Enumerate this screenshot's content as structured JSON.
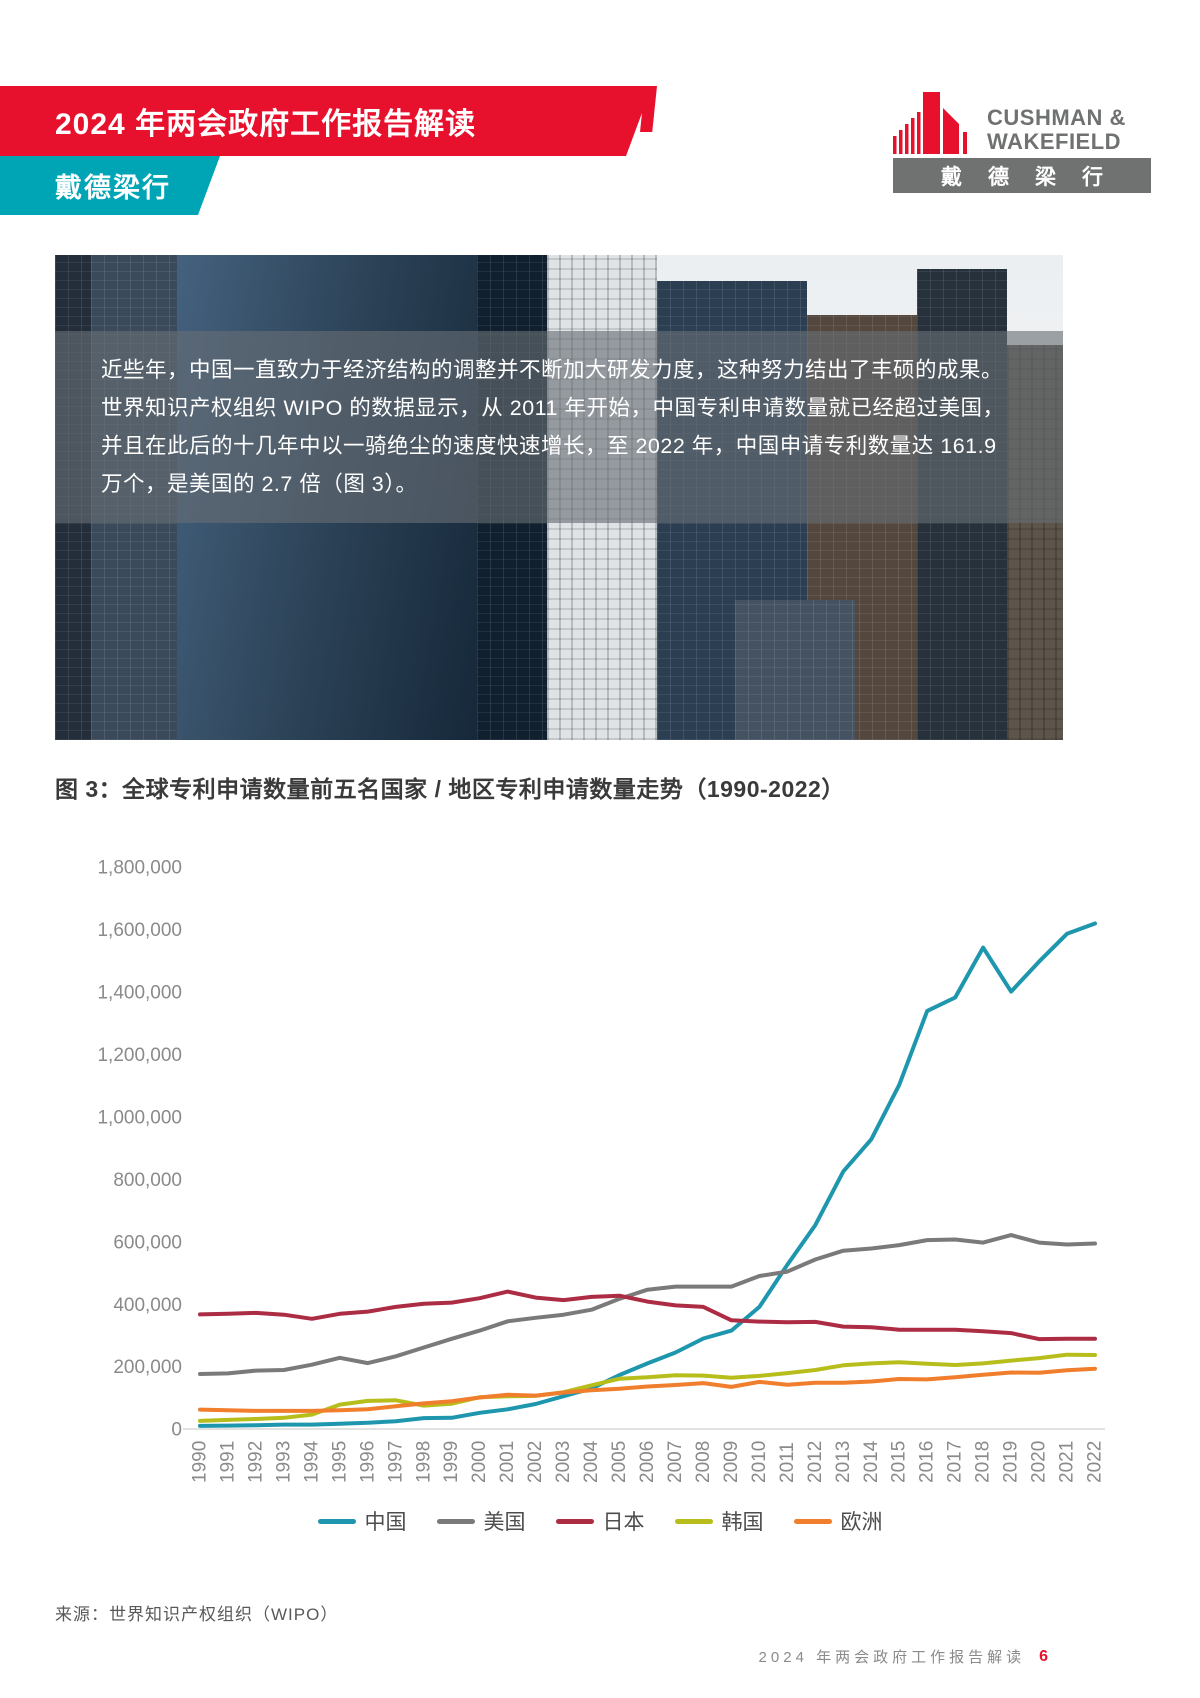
{
  "header": {
    "banner_title": "2024 年两会政府工作报告解读",
    "banner_subtitle": "戴德梁行",
    "logo": {
      "name_line1": "CUSHMAN &",
      "name_line2": "WAKEFIELD",
      "name_cn": "戴德梁行",
      "brand_red": "#E8112D",
      "brand_gray": "#6F7271"
    }
  },
  "hero": {
    "paragraph_lines": [
      "近些年，中国一直致力于经济结构的调整并不断加大研发力度，这种努力结出了丰硕的成果。",
      "世界知识产权组织 WIPO 的数据显示，从 2011 年开始，中国专利申请数量就已经超过美国，",
      "并且在此后的十几年中以一骑绝尘的速度快速增长，至 2022 年，中国申请专利数量达 161.9",
      "万个，是美国的 2.7 倍（图 3）。"
    ]
  },
  "figure": {
    "title": "图 3：全球专利申请数量前五名国家 / 地区专利申请数量走势（1990-2022）",
    "source": "来源：世界知识产权组织（WIPO）"
  },
  "chart_data": {
    "type": "line",
    "title": "全球专利申请数量前五名国家 / 地区专利申请数量走势（1990-2022）",
    "x": [
      1990,
      1991,
      1992,
      1993,
      1994,
      1995,
      1996,
      1997,
      1998,
      1999,
      2000,
      2001,
      2002,
      2003,
      2004,
      2005,
      2006,
      2007,
      2008,
      2009,
      2010,
      2011,
      2012,
      2013,
      2014,
      2015,
      2016,
      2017,
      2018,
      2019,
      2020,
      2021,
      2022
    ],
    "series": [
      {
        "name": "中国",
        "color": "#1E96AE",
        "values": [
          10000,
          11000,
          12000,
          14000,
          14000,
          17000,
          20000,
          25000,
          35000,
          36000,
          52000,
          63000,
          80000,
          105000,
          130000,
          173000,
          210000,
          245000,
          290000,
          315000,
          391000,
          526000,
          653000,
          825000,
          928000,
          1102000,
          1339000,
          1382000,
          1542000,
          1401000,
          1497000,
          1586000,
          1619000
        ]
      },
      {
        "name": "美国",
        "color": "#7A7A7A",
        "values": [
          176000,
          178000,
          187000,
          189000,
          206000,
          228000,
          211000,
          233000,
          261000,
          289000,
          315000,
          345000,
          356000,
          366000,
          382000,
          417000,
          446000,
          456000,
          456000,
          456000,
          490000,
          504000,
          543000,
          571000,
          578000,
          589000,
          605000,
          607000,
          597000,
          621000,
          597000,
          591000,
          594000
        ]
      },
      {
        "name": "日本",
        "color": "#AC2C44",
        "values": [
          367000,
          369000,
          372000,
          366000,
          353000,
          369000,
          376000,
          391000,
          401000,
          405000,
          419000,
          440000,
          421000,
          413000,
          423000,
          427000,
          408000,
          396000,
          391000,
          348000,
          344000,
          342000,
          343000,
          328000,
          326000,
          318000,
          318000,
          318000,
          313000,
          307000,
          288000,
          289000,
          289000
        ]
      },
      {
        "name": "韩国",
        "color": "#B7BE1C",
        "values": [
          26000,
          29000,
          32000,
          36000,
          46000,
          78000,
          90000,
          92000,
          75000,
          81000,
          102000,
          105000,
          106000,
          118000,
          140000,
          161000,
          166000,
          172000,
          171000,
          164000,
          170000,
          179000,
          189000,
          204000,
          210000,
          214000,
          209000,
          205000,
          210000,
          219000,
          227000,
          238000,
          237000
        ]
      },
      {
        "name": "欧洲",
        "color": "#F07E2D",
        "values": [
          62000,
          60000,
          58000,
          58000,
          58000,
          60000,
          63000,
          73000,
          82000,
          89000,
          101000,
          110000,
          107000,
          117000,
          124000,
          129000,
          136000,
          141000,
          147000,
          135000,
          151000,
          142000,
          148000,
          148000,
          152000,
          160000,
          159000,
          166000,
          174000,
          181000,
          180000,
          188000,
          193000
        ]
      }
    ],
    "ylim": [
      0,
      1800000
    ],
    "ytick_step": 200000,
    "grid": false,
    "legend_position": "bottom",
    "axis_color": "#D8D8D8",
    "tick_label_color": "#8A8A8A"
  },
  "footer": {
    "text": "2024 年两会政府工作报告解读",
    "page": "6"
  }
}
